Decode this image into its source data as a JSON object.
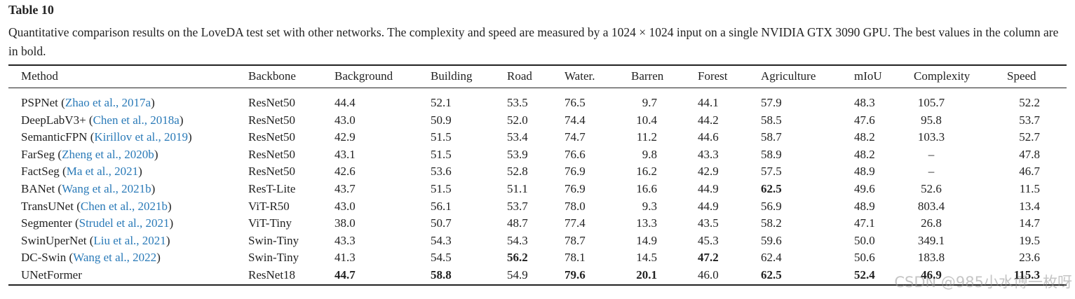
{
  "title": "Table 10",
  "caption": "Quantitative comparison results on the LoveDA test set with other networks. The complexity and speed are measured by a 1024 × 1024 input on a single NVIDIA GTX 3090 GPU. The best values in the column are in bold.",
  "table": {
    "headers": [
      "Method",
      "Backbone",
      "Background",
      "Building",
      "Road",
      "Water.",
      "Barren",
      "Forest",
      "Agriculture",
      "mIoU",
      "Complexity",
      "Speed"
    ],
    "rows": [
      {
        "method": "PSPNet",
        "citation": "(Zhao et al., 2017a)",
        "cells": [
          "ResNet50",
          "44.4",
          "52.1",
          "53.5",
          "76.5",
          "9.7",
          "44.1",
          "57.9",
          "48.3",
          "105.7",
          "52.2"
        ]
      },
      {
        "method": "DeepLabV3+",
        "citation": "(Chen et al., 2018a)",
        "cells": [
          "ResNet50",
          "43.0",
          "50.9",
          "52.0",
          "74.4",
          "10.4",
          "44.2",
          "58.5",
          "47.6",
          "95.8",
          "53.7"
        ]
      },
      {
        "method": "SemanticFPN",
        "citation": "(Kirillov et al., 2019)",
        "cells": [
          "ResNet50",
          "42.9",
          "51.5",
          "53.4",
          "74.7",
          "11.2",
          "44.6",
          "58.7",
          "48.2",
          "103.3",
          "52.7"
        ]
      },
      {
        "method": "FarSeg",
        "citation": "(Zheng et al., 2020b)",
        "cells": [
          "ResNet50",
          "43.1",
          "51.5",
          "53.9",
          "76.6",
          "9.8",
          "43.3",
          "58.9",
          "48.2",
          "–",
          "47.8"
        ]
      },
      {
        "method": "FactSeg",
        "citation": "(Ma et al., 2021)",
        "cells": [
          "ResNet50",
          "42.6",
          "53.6",
          "52.8",
          "76.9",
          "16.2",
          "42.9",
          "57.5",
          "48.9",
          "–",
          "46.7"
        ]
      },
      {
        "method": "BANet",
        "citation": "(Wang et al., 2021b)",
        "cells": [
          "ResT-Lite",
          "43.7",
          "51.5",
          "51.1",
          "76.9",
          "16.6",
          "44.9",
          {
            "text": "62.5",
            "bold": true
          },
          "49.6",
          "52.6",
          "11.5"
        ]
      },
      {
        "method": "TransUNet",
        "citation": "(Chen et al., 2021b)",
        "cells": [
          "ViT-R50",
          "43.0",
          "56.1",
          "53.7",
          "78.0",
          "9.3",
          "44.9",
          "56.9",
          "48.9",
          "803.4",
          "13.4"
        ]
      },
      {
        "method": "Segmenter",
        "citation": "(Strudel et al., 2021)",
        "cells": [
          "ViT-Tiny",
          "38.0",
          "50.7",
          "48.7",
          "77.4",
          "13.3",
          "43.5",
          "58.2",
          "47.1",
          "26.8",
          "14.7"
        ]
      },
      {
        "method": "SwinUperNet",
        "citation": "(Liu et al., 2021)",
        "cells": [
          "Swin-Tiny",
          "43.3",
          "54.3",
          "54.3",
          "78.7",
          "14.9",
          "45.3",
          "59.6",
          "50.0",
          "349.1",
          "19.5"
        ]
      },
      {
        "method": "DC-Swin",
        "citation": "(Wang et al., 2022)",
        "cells": [
          "Swin-Tiny",
          "41.3",
          "54.5",
          {
            "text": "56.2",
            "bold": true
          },
          "78.1",
          "14.5",
          {
            "text": "47.2",
            "bold": true
          },
          "62.4",
          "50.6",
          "183.8",
          "23.6"
        ]
      },
      {
        "method": "UNetFormer",
        "cells": [
          "ResNet18",
          {
            "text": "44.7",
            "bold": true
          },
          {
            "text": "58.8",
            "bold": true
          },
          "54.9",
          {
            "text": "79.6",
            "bold": true
          },
          {
            "text": "20.1",
            "bold": true
          },
          "46.0",
          {
            "text": "62.5",
            "bold": true
          },
          {
            "text": "52.4",
            "bold": true
          },
          {
            "text": "46.9",
            "bold": true
          },
          {
            "text": "115.3",
            "bold": true
          }
        ]
      }
    ]
  },
  "watermark": "CSDN @985小水博一枚呀"
}
